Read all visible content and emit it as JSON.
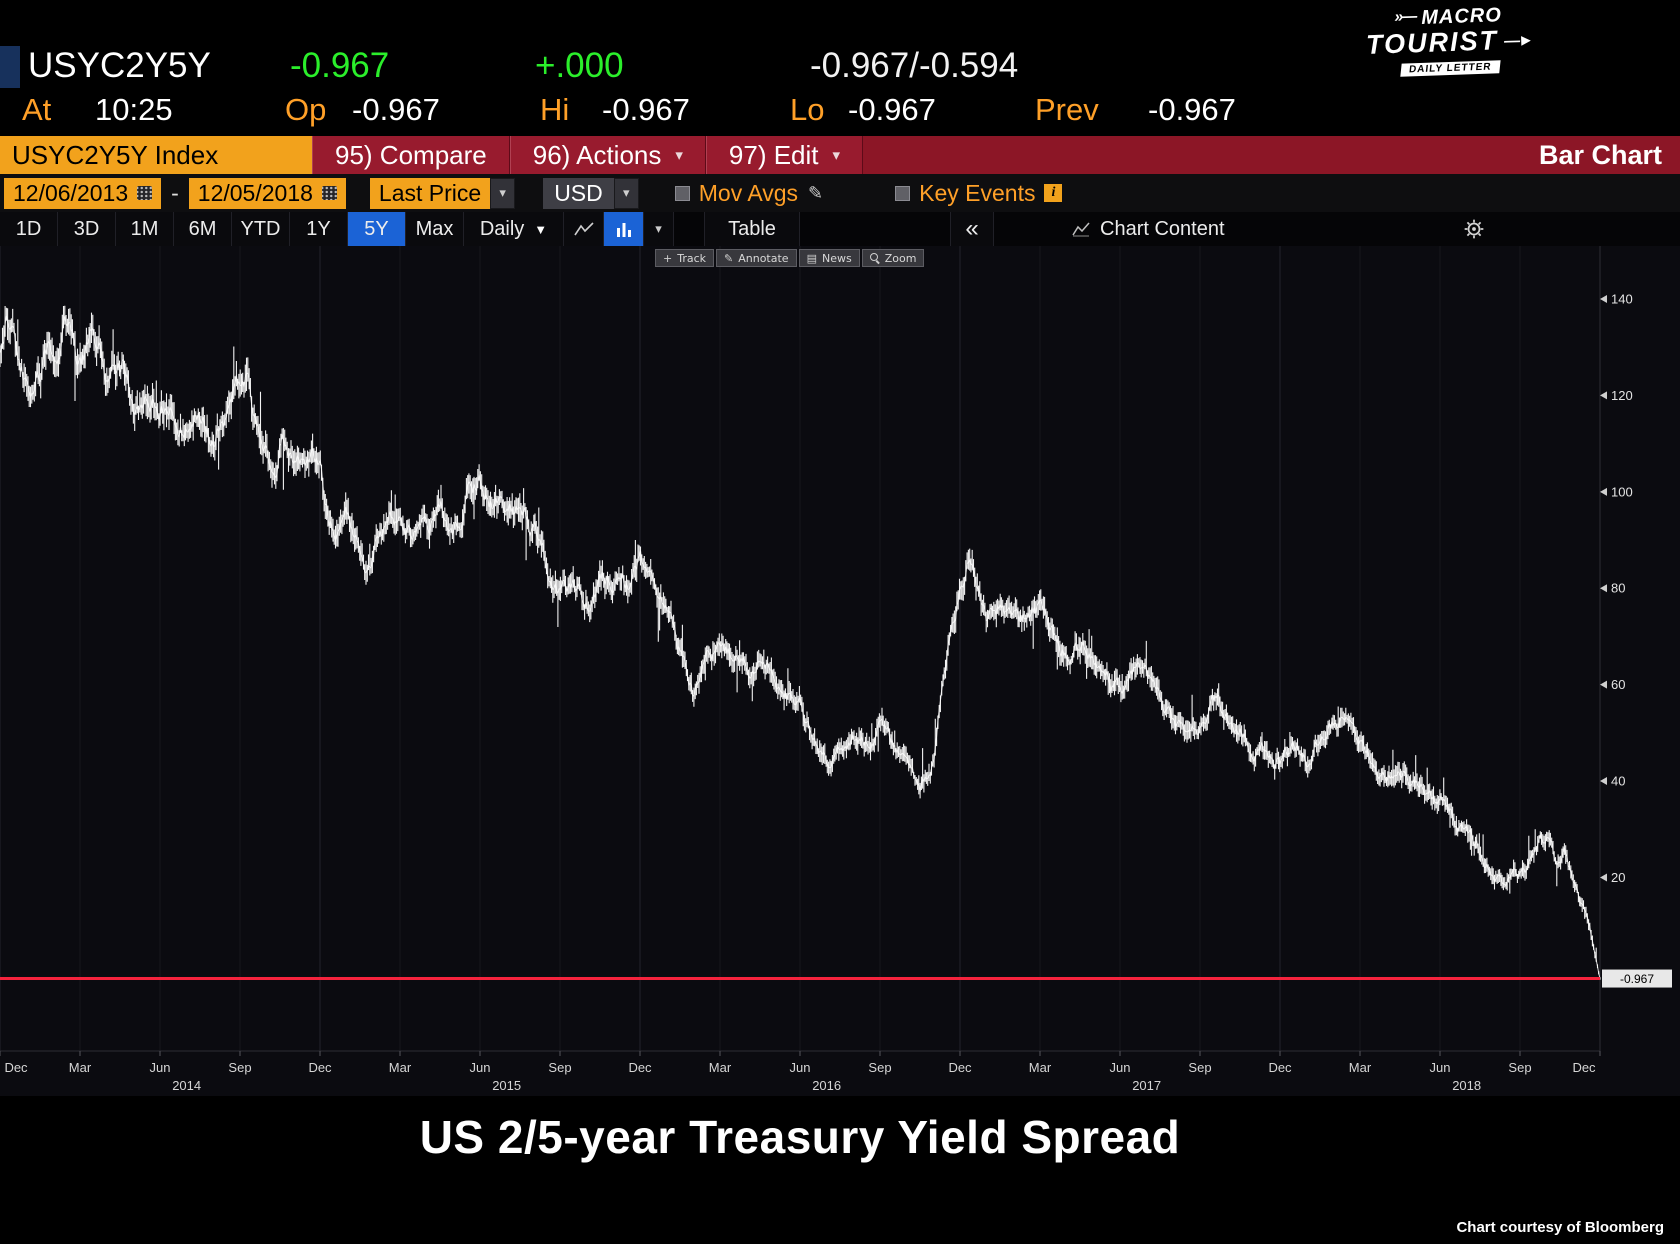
{
  "colors": {
    "green": "#2bef2b",
    "amber_text": "#ffa028",
    "amber_bg": "#f2a21c",
    "red_bar": "#8c1626",
    "blue_selected": "#1b63d6",
    "red_line": "#f5233d",
    "series": "#ffffff"
  },
  "header": {
    "ticker": "USYC2Y5Y",
    "last_change": "-0.967",
    "change_on_day": "+.000",
    "bid_ask": "-0.967/-0.594",
    "at_label": "At",
    "at_time": "10:25",
    "open_label": "Op",
    "open": "-0.967",
    "high_label": "Hi",
    "high": "-0.967",
    "low_label": "Lo",
    "low": "-0.967",
    "prev_label": "Prev",
    "prev": "-0.967"
  },
  "logo": {
    "line1": "MACRO",
    "line2": "TOURIST",
    "banner": "DAILY LETTER"
  },
  "command_bar": {
    "security": "USYC2Y5Y Index",
    "compare": "95) Compare",
    "actions": "96) Actions",
    "edit": "97) Edit",
    "chart_type": "Bar Chart"
  },
  "settings_bar": {
    "date_from": "12/06/2013",
    "range_separator": "-",
    "date_to": "12/05/2018",
    "price_source": "Last Price",
    "currency": "USD",
    "mov_avgs_label": "Mov Avgs",
    "key_events_label": "Key Events",
    "info_glyph": "i"
  },
  "tab_bar": {
    "periods": [
      "1D",
      "3D",
      "1M",
      "6M",
      "YTD",
      "1Y",
      "5Y",
      "Max"
    ],
    "selected_period": "5Y",
    "frequency": "Daily",
    "table_label": "Table",
    "collapse_glyph": "«",
    "chart_content_label": "Chart Content"
  },
  "mini_toolbar": {
    "track": "Track",
    "annotate": "Annotate",
    "news": "News",
    "zoom": "Zoom"
  },
  "chart_data": {
    "type": "bar",
    "title": "US 2/5-year Treasury Yield Spread",
    "series_name": "USYC2Y5Y Index - Last Price (bps)",
    "ylim": [
      -16,
      151
    ],
    "y_ticks": [
      20,
      40,
      60,
      80,
      100,
      120,
      140
    ],
    "last_value": -0.967,
    "last_value_label": "-0.967",
    "x_start": "Dec 2013",
    "x_end": "Dec 2018",
    "x_range_months": 60,
    "x_tick_step_months": 3,
    "x_tick_labels": [
      "Dec",
      "Mar",
      "Jun",
      "Sep",
      "Dec",
      "Mar",
      "Jun",
      "Sep",
      "Dec",
      "Mar",
      "Jun",
      "Sep",
      "Dec",
      "Mar",
      "Jun",
      "Sep",
      "Dec",
      "Mar",
      "Jun",
      "Sep",
      "Dec"
    ],
    "year_labels": [
      {
        "label": "2014",
        "month": 7
      },
      {
        "label": "2015",
        "month": 19
      },
      {
        "label": "2016",
        "month": 31
      },
      {
        "label": "2017",
        "month": 43
      },
      {
        "label": "2018",
        "month": 55
      }
    ],
    "points": [
      [
        0,
        127
      ],
      [
        0.25,
        136
      ],
      [
        0.7,
        129
      ],
      [
        1,
        122
      ],
      [
        1.5,
        127
      ],
      [
        2,
        131
      ],
      [
        2.4,
        135
      ],
      [
        3,
        127
      ],
      [
        3.4,
        131
      ],
      [
        4,
        122
      ],
      [
        4.6,
        128
      ],
      [
        5,
        118
      ],
      [
        5.5,
        123
      ],
      [
        6,
        118
      ],
      [
        6.5,
        121
      ],
      [
        7,
        115
      ],
      [
        7.5,
        118
      ],
      [
        8,
        113
      ],
      [
        8.6,
        118
      ],
      [
        9.2,
        124
      ],
      [
        9.6,
        115
      ],
      [
        10,
        110
      ],
      [
        10.3,
        101
      ],
      [
        10.6,
        112
      ],
      [
        11,
        111
      ],
      [
        11.5,
        107
      ],
      [
        12,
        104
      ],
      [
        12.3,
        96
      ],
      [
        12.6,
        91
      ],
      [
        13,
        94
      ],
      [
        13.5,
        89
      ],
      [
        13.8,
        83
      ],
      [
        14.2,
        92
      ],
      [
        14.6,
        95
      ],
      [
        15,
        92
      ],
      [
        15.5,
        88
      ],
      [
        16,
        93
      ],
      [
        16.5,
        96
      ],
      [
        17,
        94
      ],
      [
        17.5,
        99
      ],
      [
        18,
        102
      ],
      [
        18.4,
        97
      ],
      [
        19,
        93
      ],
      [
        19.5,
        96
      ],
      [
        20,
        90
      ],
      [
        20.5,
        86
      ],
      [
        21,
        83
      ],
      [
        21.5,
        79
      ],
      [
        22,
        76
      ],
      [
        22.5,
        80
      ],
      [
        23,
        82
      ],
      [
        23.5,
        79
      ],
      [
        24,
        86
      ],
      [
        24.3,
        79
      ],
      [
        25,
        73
      ],
      [
        25.5,
        66
      ],
      [
        26,
        58
      ],
      [
        26.5,
        63
      ],
      [
        27,
        67
      ],
      [
        27.5,
        65
      ],
      [
        28,
        63
      ],
      [
        28.5,
        66
      ],
      [
        29,
        62
      ],
      [
        29.5,
        59
      ],
      [
        30,
        56
      ],
      [
        30.5,
        49
      ],
      [
        31,
        45
      ],
      [
        31.5,
        48
      ],
      [
        32,
        51
      ],
      [
        32.5,
        48
      ],
      [
        33,
        50
      ],
      [
        33.4,
        46
      ],
      [
        34,
        43
      ],
      [
        34.5,
        38
      ],
      [
        35,
        45
      ],
      [
        35.4,
        64
      ],
      [
        35.7,
        74
      ],
      [
        36,
        80
      ],
      [
        36.3,
        85
      ],
      [
        36.7,
        78
      ],
      [
        37,
        73
      ],
      [
        37.5,
        76
      ],
      [
        38,
        72
      ],
      [
        38.5,
        74
      ],
      [
        39,
        77
      ],
      [
        39.5,
        71
      ],
      [
        40,
        67
      ],
      [
        40.5,
        70
      ],
      [
        41,
        65
      ],
      [
        41.5,
        61
      ],
      [
        42,
        58
      ],
      [
        42.5,
        61
      ],
      [
        43,
        60
      ],
      [
        43.5,
        56
      ],
      [
        44,
        53
      ],
      [
        44.5,
        49
      ],
      [
        45,
        53
      ],
      [
        45.5,
        56
      ],
      [
        46,
        53
      ],
      [
        46.5,
        50
      ],
      [
        47,
        47
      ],
      [
        47.5,
        45
      ],
      [
        48,
        44
      ],
      [
        48.5,
        48
      ],
      [
        49,
        45
      ],
      [
        49.5,
        50
      ],
      [
        50,
        52
      ],
      [
        50.4,
        54
      ],
      [
        51,
        49
      ],
      [
        51.5,
        45
      ],
      [
        52,
        43
      ],
      [
        52.5,
        45
      ],
      [
        53,
        41
      ],
      [
        53.5,
        38
      ],
      [
        54,
        35
      ],
      [
        54.5,
        32
      ],
      [
        55,
        29
      ],
      [
        55.5,
        25
      ],
      [
        56,
        22
      ],
      [
        56.4,
        19
      ],
      [
        56.8,
        23
      ],
      [
        57.2,
        21
      ],
      [
        57.6,
        26
      ],
      [
        58,
        28
      ],
      [
        58.3,
        23
      ],
      [
        58.7,
        25
      ],
      [
        59,
        18
      ],
      [
        59.4,
        12
      ],
      [
        59.7,
        6
      ],
      [
        60,
        -0.967
      ]
    ]
  },
  "footer": {
    "title": "US 2/5-year Treasury Yield Spread",
    "courtesy": "Chart courtesy of Bloomberg"
  }
}
